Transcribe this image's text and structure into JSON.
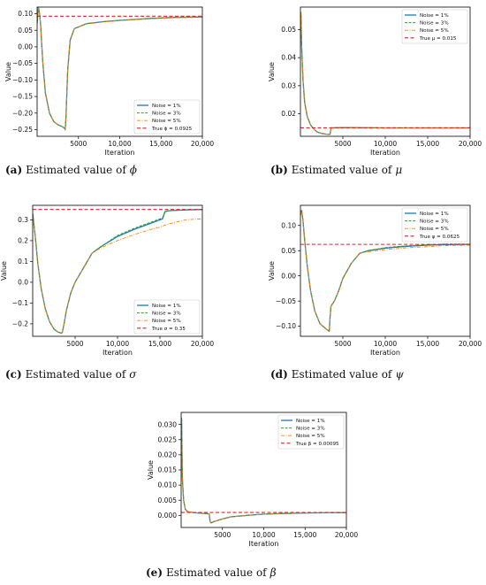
{
  "colors": {
    "s1": "#1f77b4",
    "s2": "#2ca02c",
    "s3": "#ff7f0e",
    "truth": "#d62728"
  },
  "chart_data": [
    {
      "type": "line",
      "caption": {
        "tag": "(a)",
        "text": "Estimated value of",
        "symbol": "ϕ"
      },
      "xlabel": "Iteration",
      "ylabel": "Value",
      "xlim": [
        0,
        20000
      ],
      "ylim": [
        -0.27,
        0.12
      ],
      "xticks": [
        5000,
        10000,
        15000,
        20000
      ],
      "xtick_labels": [
        "5000",
        "10,000",
        "15,000",
        "20,000"
      ],
      "yticks": [
        -0.25,
        -0.2,
        -0.15,
        -0.1,
        -0.05,
        0.0,
        0.05,
        0.1
      ],
      "ytick_labels": [
        "−0.25",
        "−0.20",
        "−0.15",
        "−0.10",
        "−0.05",
        "0.00",
        "0.05",
        "0.10"
      ],
      "legend_position": "bottom-right",
      "true_value": {
        "label": "True ϕ = 0.0925",
        "value": 0.0925
      },
      "series": [
        {
          "name": "Noise = 1%",
          "x": [
            0,
            150,
            300,
            450,
            500,
            700,
            1000,
            1500,
            2000,
            2500,
            3000,
            3300,
            3400,
            3500,
            3700,
            4000,
            4500,
            5000,
            6000,
            7000,
            8000,
            10000,
            12000,
            14000,
            15000,
            17000,
            20000
          ],
          "values": [
            0.07,
            0.12,
            0.1,
            0.06,
            0.03,
            -0.05,
            -0.14,
            -0.2,
            -0.225,
            -0.235,
            -0.24,
            -0.245,
            -0.25,
            -0.21,
            -0.07,
            0.02,
            0.055,
            0.06,
            0.07,
            0.073,
            0.076,
            0.08,
            0.083,
            0.086,
            0.087,
            0.089,
            0.09
          ]
        },
        {
          "name": "Noise = 3%",
          "x": [
            0,
            150,
            300,
            450,
            500,
            700,
            1000,
            1500,
            2000,
            2500,
            3000,
            3300,
            3400,
            3500,
            3700,
            4000,
            4500,
            5000,
            6000,
            7000,
            8000,
            10000,
            12000,
            14000,
            15000,
            17000,
            20000
          ],
          "values": [
            0.07,
            0.12,
            0.1,
            0.06,
            0.03,
            -0.05,
            -0.14,
            -0.2,
            -0.225,
            -0.235,
            -0.24,
            -0.246,
            -0.251,
            -0.21,
            -0.07,
            0.02,
            0.055,
            0.06,
            0.07,
            0.073,
            0.076,
            0.08,
            0.083,
            0.086,
            0.088,
            0.09,
            0.091
          ]
        },
        {
          "name": "Noise = 5%",
          "x": [
            0,
            150,
            300,
            450,
            500,
            700,
            1000,
            1500,
            2000,
            2500,
            3000,
            3300,
            3400,
            3500,
            3700,
            4000,
            4500,
            5000,
            6000,
            7000,
            8000,
            10000,
            12000,
            14000,
            15000,
            17000,
            20000
          ],
          "values": [
            0.07,
            0.12,
            0.1,
            0.06,
            0.03,
            -0.05,
            -0.14,
            -0.2,
            -0.225,
            -0.235,
            -0.24,
            -0.247,
            -0.252,
            -0.21,
            -0.07,
            0.02,
            0.055,
            0.06,
            0.069,
            0.072,
            0.075,
            0.079,
            0.082,
            0.085,
            0.086,
            0.088,
            0.089
          ]
        }
      ]
    },
    {
      "type": "line",
      "caption": {
        "tag": "(b)",
        "text": "Estimated value of",
        "symbol": "μ"
      },
      "xlabel": "Iteration",
      "ylabel": "Value",
      "xlim": [
        0,
        20000
      ],
      "ylim": [
        0.012,
        0.058
      ],
      "xticks": [
        5000,
        10000,
        15000,
        20000
      ],
      "xtick_labels": [
        "5000",
        "10,000",
        "15,000",
        "20,000"
      ],
      "yticks": [
        0.02,
        0.03,
        0.04,
        0.05
      ],
      "ytick_labels": [
        "0.02",
        "0.03",
        "0.04",
        "0.05"
      ],
      "legend_position": "top-right",
      "true_value": {
        "label": "True μ = 0.015",
        "value": 0.015
      },
      "series": [
        {
          "name": "Noise = 1%",
          "x": [
            0,
            50,
            150,
            300,
            500,
            800,
            1200,
            1600,
            2000,
            2500,
            3000,
            3400,
            3500,
            3600,
            5000,
            10000,
            15000,
            20000
          ],
          "values": [
            0.05,
            0.056,
            0.044,
            0.032,
            0.024,
            0.019,
            0.016,
            0.0145,
            0.0135,
            0.013,
            0.0128,
            0.0127,
            0.0128,
            0.015,
            0.0151,
            0.015,
            0.015,
            0.015
          ]
        },
        {
          "name": "Noise = 3%",
          "x": [
            0,
            50,
            150,
            300,
            500,
            800,
            1200,
            1600,
            2000,
            2500,
            3000,
            3400,
            3500,
            3600,
            5000,
            10000,
            15000,
            20000
          ],
          "values": [
            0.05,
            0.056,
            0.044,
            0.032,
            0.024,
            0.019,
            0.016,
            0.0145,
            0.0135,
            0.013,
            0.0128,
            0.0127,
            0.0128,
            0.015,
            0.0151,
            0.015,
            0.015,
            0.015
          ]
        },
        {
          "name": "Noise = 5%",
          "x": [
            0,
            50,
            150,
            300,
            500,
            800,
            1200,
            1600,
            2000,
            2500,
            3000,
            3400,
            3500,
            3600,
            5000,
            10000,
            15000,
            20000
          ],
          "values": [
            0.05,
            0.056,
            0.044,
            0.032,
            0.024,
            0.019,
            0.016,
            0.0145,
            0.0135,
            0.013,
            0.0128,
            0.0127,
            0.0128,
            0.015,
            0.0151,
            0.015,
            0.015,
            0.015
          ]
        }
      ]
    },
    {
      "type": "line",
      "caption": {
        "tag": "(c)",
        "text": "Estimated value of",
        "symbol": "σ"
      },
      "xlabel": "Iteration",
      "ylabel": "Value",
      "xlim": [
        0,
        20000
      ],
      "ylim": [
        -0.26,
        0.37
      ],
      "xticks": [
        5000,
        10000,
        15000,
        20000
      ],
      "xtick_labels": [
        "5000",
        "10,000",
        "15,000",
        "20,000"
      ],
      "yticks": [
        -0.2,
        -0.1,
        0.0,
        0.1,
        0.2,
        0.3
      ],
      "ytick_labels": [
        "−0.2",
        "−0.1",
        "0.0",
        "0.1",
        "0.2",
        "0.3"
      ],
      "legend_position": "bottom-right",
      "true_value": {
        "label": "True σ = 0.35",
        "value": 0.35
      },
      "series": [
        {
          "name": "Noise = 1%",
          "x": [
            0,
            300,
            600,
            1000,
            1500,
            2000,
            2500,
            3000,
            3400,
            3500,
            3700,
            4000,
            4500,
            5000,
            6000,
            7000,
            8000,
            10000,
            12000,
            14000,
            15000,
            15300,
            15600,
            16000,
            17000,
            18000,
            20000
          ],
          "values": [
            0.33,
            0.22,
            0.09,
            -0.03,
            -0.13,
            -0.19,
            -0.225,
            -0.24,
            -0.245,
            -0.24,
            -0.2,
            -0.13,
            -0.05,
            0.0,
            0.07,
            0.14,
            0.17,
            0.22,
            0.255,
            0.285,
            0.3,
            0.305,
            0.34,
            0.344,
            0.346,
            0.348,
            0.35
          ]
        },
        {
          "name": "Noise = 3%",
          "x": [
            0,
            300,
            600,
            1000,
            1500,
            2000,
            2500,
            3000,
            3400,
            3500,
            3700,
            4000,
            4500,
            5000,
            6000,
            7000,
            8000,
            10000,
            12000,
            14000,
            15000,
            15300,
            15600,
            16000,
            17000,
            18000,
            20000
          ],
          "values": [
            0.33,
            0.22,
            0.09,
            -0.03,
            -0.13,
            -0.19,
            -0.225,
            -0.24,
            -0.246,
            -0.24,
            -0.2,
            -0.13,
            -0.05,
            0.0,
            0.07,
            0.14,
            0.17,
            0.225,
            0.26,
            0.29,
            0.305,
            0.31,
            0.34,
            0.344,
            0.346,
            0.348,
            0.35
          ]
        },
        {
          "name": "Noise = 5%",
          "x": [
            0,
            300,
            600,
            1000,
            1500,
            2000,
            2500,
            3000,
            3400,
            3500,
            3700,
            4000,
            4500,
            5000,
            6000,
            7000,
            8000,
            10000,
            12000,
            14000,
            15000,
            15300,
            15600,
            16000,
            17000,
            18000,
            20000
          ],
          "values": [
            0.33,
            0.22,
            0.09,
            -0.03,
            -0.13,
            -0.19,
            -0.225,
            -0.24,
            -0.247,
            -0.24,
            -0.2,
            -0.13,
            -0.05,
            0.0,
            0.07,
            0.14,
            0.165,
            0.2,
            0.23,
            0.255,
            0.265,
            0.27,
            0.275,
            0.28,
            0.29,
            0.3,
            0.305
          ]
        }
      ]
    },
    {
      "type": "line",
      "caption": {
        "tag": "(d)",
        "text": "Estimated value of",
        "symbol": "ψ"
      },
      "xlabel": "Iteration",
      "ylabel": "Value",
      "xlim": [
        0,
        20000
      ],
      "ylim": [
        -0.12,
        0.14
      ],
      "xticks": [
        5000,
        10000,
        15000,
        20000
      ],
      "xtick_labels": [
        "5000",
        "10,000",
        "15,000",
        "20,000"
      ],
      "yticks": [
        -0.1,
        -0.05,
        0.0,
        0.05,
        0.1
      ],
      "ytick_labels": [
        "−0.10",
        "−0.05",
        "0.00",
        "0.05",
        "0.10"
      ],
      "legend_position": "top-right",
      "true_value": {
        "label": "True ψ = 0.0625",
        "value": 0.0625
      },
      "series": [
        {
          "name": "Noise = 1%",
          "x": [
            0,
            150,
            300,
            500,
            800,
            1200,
            1700,
            2300,
            3000,
            3400,
            3500,
            3600,
            4000,
            4500,
            5000,
            6000,
            7000,
            8000,
            10000,
            12000,
            14000,
            15000,
            17000,
            20000
          ],
          "values": [
            0.12,
            0.13,
            0.11,
            0.07,
            0.02,
            -0.03,
            -0.07,
            -0.095,
            -0.105,
            -0.11,
            -0.08,
            -0.06,
            -0.05,
            -0.03,
            -0.005,
            0.025,
            0.045,
            0.05,
            0.055,
            0.058,
            0.06,
            0.061,
            0.062,
            0.0625
          ]
        },
        {
          "name": "Noise = 3%",
          "x": [
            0,
            150,
            300,
            500,
            800,
            1200,
            1700,
            2300,
            3000,
            3400,
            3500,
            3600,
            4000,
            4500,
            5000,
            6000,
            7000,
            8000,
            10000,
            12000,
            14000,
            15000,
            17000,
            20000
          ],
          "values": [
            0.12,
            0.13,
            0.11,
            0.07,
            0.02,
            -0.03,
            -0.07,
            -0.095,
            -0.105,
            -0.11,
            -0.08,
            -0.06,
            -0.05,
            -0.03,
            -0.005,
            0.025,
            0.045,
            0.05,
            0.056,
            0.059,
            0.061,
            0.062,
            0.063,
            0.063
          ]
        },
        {
          "name": "Noise = 5%",
          "x": [
            0,
            150,
            300,
            500,
            800,
            1200,
            1700,
            2300,
            3000,
            3400,
            3500,
            3600,
            4000,
            4500,
            5000,
            6000,
            7000,
            8000,
            10000,
            12000,
            14000,
            15000,
            17000,
            20000
          ],
          "values": [
            0.12,
            0.13,
            0.11,
            0.07,
            0.02,
            -0.03,
            -0.07,
            -0.095,
            -0.105,
            -0.11,
            -0.08,
            -0.06,
            -0.05,
            -0.03,
            -0.005,
            0.025,
            0.045,
            0.048,
            0.052,
            0.055,
            0.057,
            0.058,
            0.06,
            0.061
          ]
        }
      ]
    },
    {
      "type": "line",
      "caption": {
        "tag": "(e)",
        "text": "Estimated value of",
        "symbol": "β"
      },
      "xlabel": "Iteration",
      "ylabel": "Value",
      "xlim": [
        0,
        20000
      ],
      "ylim": [
        -0.004,
        0.034
      ],
      "xticks": [
        5000,
        10000,
        15000,
        20000
      ],
      "xtick_labels": [
        "5000",
        "10,000",
        "15,000",
        "20,000"
      ],
      "yticks": [
        0.0,
        0.005,
        0.01,
        0.015,
        0.02,
        0.025,
        0.03
      ],
      "ytick_labels": [
        "0.000",
        "0.005",
        "0.010",
        "0.015",
        "0.020",
        "0.025",
        "0.030"
      ],
      "legend_position": "top-right",
      "true_value": {
        "label": "True β = 0.00095",
        "value": 0.00095
      },
      "series": [
        {
          "name": "Noise = 1%",
          "x": [
            0,
            50,
            150,
            300,
            500,
            800,
            1200,
            2000,
            3000,
            3400,
            3500,
            3600,
            4000,
            5000,
            6000,
            8000,
            10000,
            12000,
            15000,
            20000
          ],
          "values": [
            0.028,
            0.032,
            0.012,
            0.005,
            0.002,
            0.0012,
            0.001,
            0.0008,
            0.0006,
            0.0005,
            -0.002,
            -0.0025,
            -0.002,
            -0.0012,
            -0.0005,
            0.0,
            0.0004,
            0.0006,
            0.0008,
            0.0009
          ]
        },
        {
          "name": "Noise = 3%",
          "x": [
            0,
            50,
            150,
            300,
            500,
            800,
            1200,
            2000,
            3000,
            3400,
            3500,
            3600,
            4000,
            5000,
            6000,
            8000,
            10000,
            12000,
            15000,
            20000
          ],
          "values": [
            0.028,
            0.032,
            0.012,
            0.005,
            0.002,
            0.0012,
            0.001,
            0.0008,
            0.0006,
            0.0005,
            -0.002,
            -0.0025,
            -0.002,
            -0.0012,
            -0.0005,
            0.0,
            0.0004,
            0.0006,
            0.0008,
            0.0009
          ]
        },
        {
          "name": "Noise = 5%",
          "x": [
            0,
            50,
            150,
            300,
            500,
            800,
            1200,
            2000,
            3000,
            3400,
            3500,
            3600,
            4000,
            5000,
            6000,
            8000,
            10000,
            12000,
            15000,
            20000
          ],
          "values": [
            0.028,
            0.032,
            0.012,
            0.005,
            0.002,
            0.0012,
            0.001,
            0.0008,
            0.0006,
            0.0005,
            -0.002,
            -0.0025,
            -0.002,
            -0.0012,
            -0.0005,
            0.0,
            0.0004,
            0.0006,
            0.0008,
            0.0009
          ]
        }
      ]
    }
  ]
}
